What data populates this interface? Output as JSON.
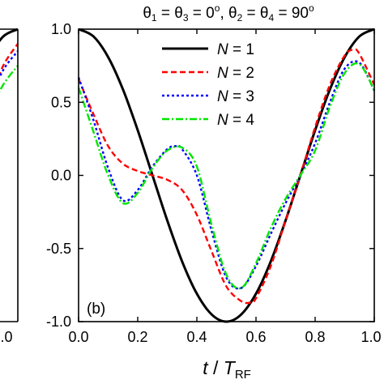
{
  "chart_data": {
    "type": "line",
    "title_parts": {
      "theta": "θ",
      "sub1": "1",
      "eq1": " = θ",
      "sub3": "3",
      "val1": " = 0",
      "deg1": "o",
      "comma": ",  θ",
      "sub2": "2",
      "eq2": " = θ",
      "sub4": "4",
      "val2": " = 90",
      "deg2": "o"
    },
    "panel_label": "(b)",
    "xlabel_parts": {
      "t": "t",
      "slash": " / ",
      "T": "T",
      "sub": "RF"
    },
    "xlim": [
      0,
      1
    ],
    "ylim": [
      -1,
      1
    ],
    "x_ticks": [
      "0.0",
      "0.2",
      "0.4",
      "0.6",
      "0.8",
      "1.0"
    ],
    "y_ticks": [
      "1.0",
      "0.5",
      "0.0",
      "-0.5",
      "-1.0"
    ],
    "left_panel_x_tick": "1.0",
    "legend": [
      {
        "var": "N",
        "eq": " = 1"
      },
      {
        "var": "N",
        "eq": " = 2"
      },
      {
        "var": "N",
        "eq": " = 3"
      },
      {
        "var": "N",
        "eq": " = 4"
      }
    ],
    "series": [
      {
        "name": "N = 1",
        "color": "#000000",
        "style": "solid",
        "x": [
          0.0,
          0.05,
          0.1,
          0.15,
          0.2,
          0.25,
          0.3,
          0.35,
          0.4,
          0.45,
          0.5,
          0.55,
          0.6,
          0.65,
          0.7,
          0.75,
          0.8,
          0.85,
          0.9,
          0.95,
          1.0
        ],
        "y": [
          1.0,
          0.951,
          0.809,
          0.588,
          0.309,
          0.0,
          -0.309,
          -0.588,
          -0.809,
          -0.951,
          -1.0,
          -0.951,
          -0.809,
          -0.588,
          -0.309,
          0.0,
          0.309,
          0.588,
          0.809,
          0.951,
          1.0
        ]
      },
      {
        "name": "N = 2",
        "color": "#ff0000",
        "style": "dash",
        "x": [
          0.0,
          0.05,
          0.1,
          0.15,
          0.2,
          0.25,
          0.3,
          0.35,
          0.4,
          0.45,
          0.5,
          0.55,
          0.58,
          0.6,
          0.65,
          0.7,
          0.75,
          0.8,
          0.85,
          0.9,
          0.93,
          0.95,
          1.0
        ],
        "y": [
          0.66,
          0.42,
          0.2,
          0.08,
          0.03,
          0.0,
          -0.03,
          -0.1,
          -0.27,
          -0.52,
          -0.76,
          -0.86,
          -0.87,
          -0.84,
          -0.62,
          -0.31,
          0.0,
          0.33,
          0.62,
          0.82,
          0.86,
          0.83,
          0.62
        ]
      },
      {
        "name": "N = 3",
        "color": "#0000ff",
        "style": "dot",
        "x": [
          0.0,
          0.05,
          0.1,
          0.15,
          0.2,
          0.25,
          0.3,
          0.33,
          0.35,
          0.4,
          0.45,
          0.5,
          0.55,
          0.6,
          0.65,
          0.7,
          0.75,
          0.8,
          0.85,
          0.9,
          0.95,
          1.0
        ],
        "y": [
          0.67,
          0.38,
          0.05,
          -0.17,
          -0.1,
          0.06,
          0.18,
          0.2,
          0.18,
          0.0,
          -0.38,
          -0.7,
          -0.77,
          -0.62,
          -0.4,
          -0.19,
          0.0,
          0.22,
          0.5,
          0.73,
          0.77,
          0.58
        ]
      },
      {
        "name": "N = 4",
        "color": "#00e600",
        "style": "dashdot",
        "x": [
          0.0,
          0.05,
          0.1,
          0.15,
          0.2,
          0.25,
          0.3,
          0.35,
          0.4,
          0.45,
          0.5,
          0.55,
          0.6,
          0.65,
          0.7,
          0.75,
          0.8,
          0.85,
          0.9,
          0.95,
          1.0
        ],
        "y": [
          0.6,
          0.3,
          0.0,
          -0.19,
          -0.12,
          0.05,
          0.17,
          0.19,
          0.06,
          -0.34,
          -0.68,
          -0.77,
          -0.6,
          -0.36,
          -0.16,
          0.0,
          0.17,
          0.47,
          0.7,
          0.76,
          0.58
        ]
      }
    ],
    "left_panel": {
      "series": [
        {
          "name": "N = 1",
          "color": "#000000",
          "style": "solid",
          "x": [
            0.9,
            0.95,
            1.0
          ],
          "y": [
            0.81,
            0.95,
            1.0
          ]
        },
        {
          "name": "N = 2",
          "color": "#ff0000",
          "style": "dash",
          "x": [
            0.9,
            0.95,
            1.0
          ],
          "y": [
            0.5,
            0.75,
            0.9
          ]
        },
        {
          "name": "N = 3",
          "color": "#0000ff",
          "style": "dot",
          "x": [
            0.9,
            0.95,
            1.0
          ],
          "y": [
            0.5,
            0.72,
            0.85
          ]
        },
        {
          "name": "N = 4",
          "color": "#00e600",
          "style": "dashdot",
          "x": [
            0.9,
            0.95,
            1.0
          ],
          "y": [
            0.42,
            0.62,
            0.75
          ]
        }
      ]
    }
  }
}
